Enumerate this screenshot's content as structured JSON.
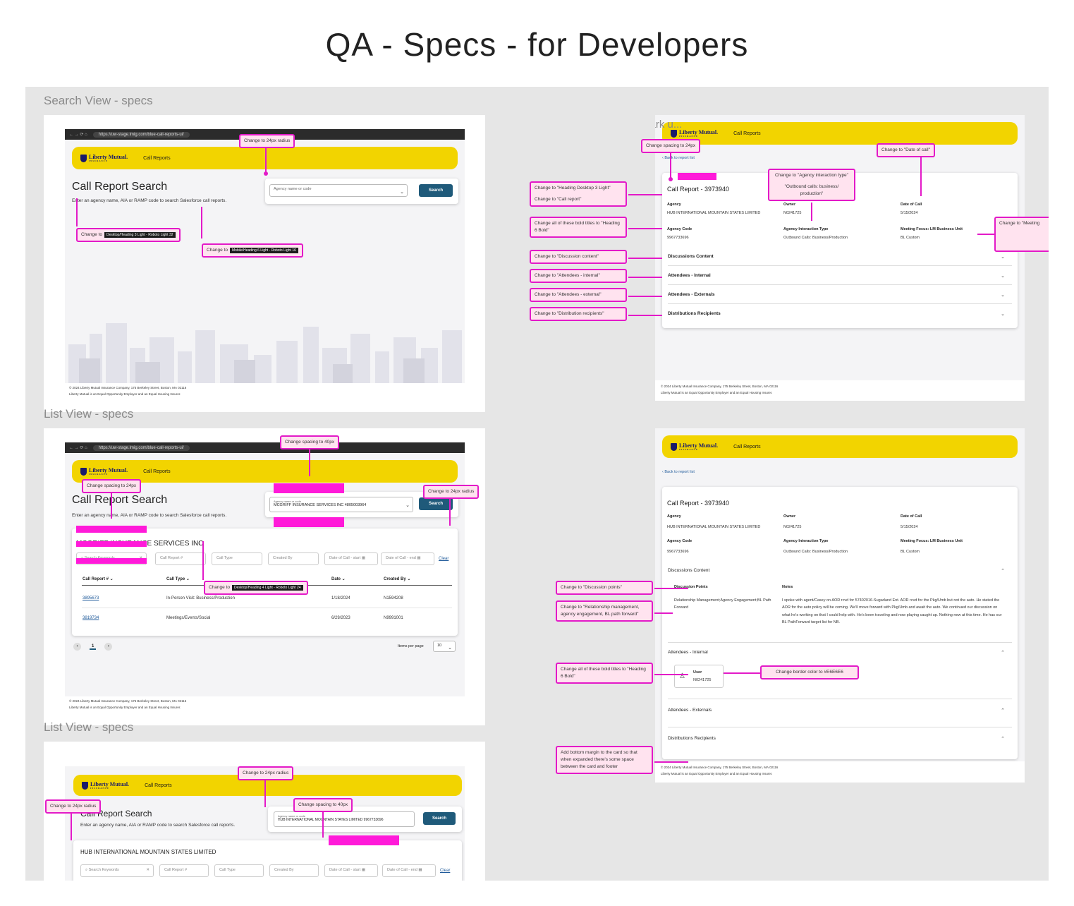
{
  "page_title": "QA - Specs - for Developers",
  "sections": {
    "search_view": "Search View - specs",
    "list_view_1": "List View - specs",
    "list_view_2": "List View - specs",
    "mark_up": "Mark u..."
  },
  "browser": {
    "url": "https://uw-stage.lmig.com/blue-call-reports-ui/"
  },
  "app": {
    "logo_text": "Liberty Mutual.",
    "logo_sub": "INSURANCE",
    "nav_call_reports": "Call Reports",
    "search_title": "Call Report Search",
    "search_subtitle": "Enter an agency name, AIA or RAMP code to search Salesforce call reports.",
    "agency_placeholder": "Agency name or code",
    "agency_label": "Agency name or code",
    "search_button": "Search",
    "footer_line1": "© 2024 Liberty Mutual Insurance Company, 175 Berkeley Street, Boston, MA 02116",
    "footer_line2": "Liberty Mutual is an Equal Opportunity Employer and an Equal Housing Insurer."
  },
  "search_view": {
    "annotations": {
      "radius": "Change to 24px radius",
      "heading_change": "Change to",
      "heading_tag": "Desktop/Heading 3 Light - Roboto Light 32",
      "mobile_change": "Change to",
      "mobile_tag": "Mobile/Heading 6 Light - Roboto Light 16"
    }
  },
  "list_view": {
    "selected_agency": "MCGRIFF INSURANCE SERVICES INC 4805003964",
    "agency_heading": "MCGRIFF INSURANCE SERVICES INC",
    "filters": {
      "keywords": "Search Keywords",
      "call_report": "Call Report #",
      "call_type": "Call Type",
      "created_by": "Created By",
      "date_start": "Date of Call - start",
      "date_end": "Date of Call - end",
      "clear": "Clear"
    },
    "columns": [
      "Call Report #",
      "Call Type",
      "Date",
      "Created By"
    ],
    "rows": [
      {
        "id": "3895673",
        "type": "In-Person Visit: Business/Production",
        "date": "1/18/2024",
        "by": "N1594208"
      },
      {
        "id": "3819734",
        "type": "Meetings/Events/Social",
        "date": "6/29/2023",
        "by": "N9991001"
      }
    ],
    "page": "1",
    "items_per_page_label": "Items per page",
    "items_per_page": "10",
    "annotations": {
      "spacing40": "Change spacing to 40px",
      "spacing24": "Change spacing to 24px",
      "radius": "Change to 24px radius",
      "heading_change": "Change to",
      "heading_tag": "Desktop/Heading 4 Light - Roboto Light 24"
    }
  },
  "list_view_2": {
    "selected_agency": "HUB INTERNATIONAL MOUNTAIN STATES LIMITED 9967733696",
    "agency_heading": "HUB INTERNATIONAL MOUNTAIN STATES LIMITED",
    "annotations": {
      "radius_top": "Change to 24px radius",
      "radius_left": "Change to 24px radius",
      "spacing40": "Change spacing to 40px"
    }
  },
  "detail": {
    "back_link": "Back to report list",
    "title": "Call Report - 3973940",
    "agency_label": "Agency",
    "agency": "HUB INTERNATIONAL MOUNTAIN STATES LIMITED",
    "owner_label": "Owner",
    "owner": "N0241725",
    "date_label": "Date of Call",
    "date": "5/15/2024",
    "code_label": "Agency Code",
    "code": "9967733696",
    "interaction_label": "Agency Interaction Type",
    "interaction": "Outbound Calls: Business/Production",
    "focus_label": "Meeting Focus: LM Business Unit",
    "focus": "BL Custom",
    "sections": [
      "Discussions Content",
      "Attendees - Internal",
      "Attendees - Externals",
      "Distributions Recipients"
    ],
    "discussion_points_label": "Discussion Points",
    "discussion_points": "Relationship Management;Agency Engagement;BL Path Forward",
    "notes_label": "Notes",
    "notes": "I spoke with agent/Casey on AOR rcvd for 57402016-Sugarland Ent. AOR rcvd for the Pkg/Umb but not the auto. He stated the AOR for the auto policy will be coming. We'll move forward with Pkg/Umb and await the auto. We continued our discussion on what he's working on that I could help with. He's been traveling and now playing caught up. Nothing new at this time. He has our BL PathForward target list for NB.",
    "user_label": "User",
    "user_id": "N0241725",
    "annotations": {
      "spacing24": "Change spacing to 24px",
      "date_of_call": "Change to \"Date of call\"",
      "interaction_type": "Change to \"Agency interaction type\"",
      "interaction_value": "\"Outbound calls: business/ production\"",
      "heading_a": "Change to \"Heading Desktop 3 Light\"",
      "heading_b": "Change to \"Call report\"",
      "bold_titles": "Change all of these bold titles to \"Heading 6 Bold\"",
      "meeting": "Change to \"Meeting",
      "discussion_content": "Change to \"Discussion content\"",
      "attendees_internal": "Change to \"Attendees - internal\"",
      "attendees_external": "Change to \"Attendees - external\"",
      "distribution": "Change to \"Distribution recipients\"",
      "discussion_points": "Change to \"Discussion points\"",
      "relationship": "Change to \"Relationship management, agency engagement, BL path forward\"",
      "bold_titles_2": "Change all of these bold titles to \"Heading 6 Bold\"",
      "border_color": "Change border color to #E6E6E6",
      "bottom_margin": "Add bottom margin to the card so that when expanded there's some space between the card and footer"
    }
  },
  "colors": {
    "brand_yellow": "#f2d400",
    "annotation_magenta": "#e31ac8",
    "button_blue": "#1f5a7a"
  }
}
